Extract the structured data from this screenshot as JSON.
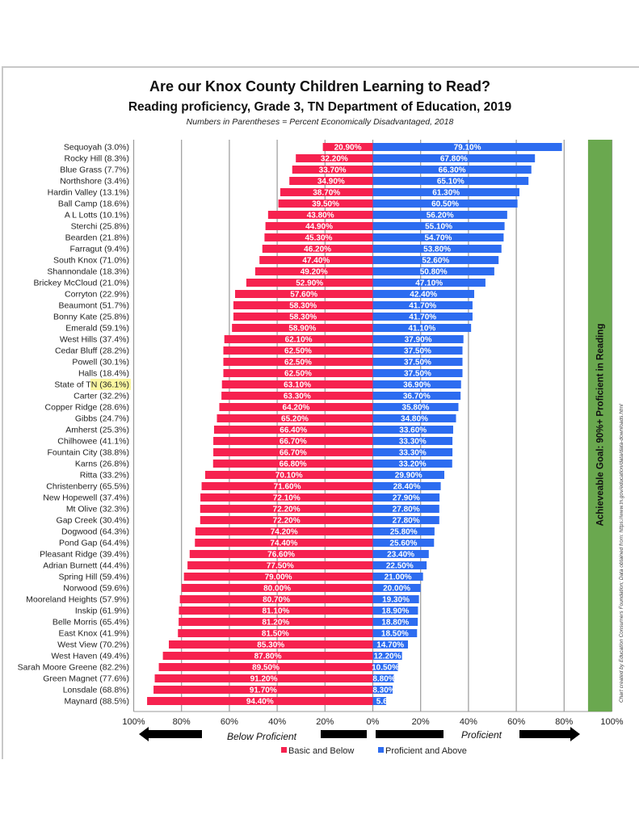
{
  "chart_data": {
    "type": "bar",
    "orientation": "horizontal-diverging",
    "title": "Are our Knox County Children Learning to Read?",
    "subtitle": "Reading proficiency, Grade 3, TN Department of Education, 2019",
    "note": "Numbers in Parentheses = Percent Economically Disadvantaged, 2018",
    "categories": [
      "Sequoyah (3.0%)",
      "Rocky Hill (8.3%)",
      "Blue Grass (7.7%)",
      "Northshore (3.4%)",
      "Hardin Valley (13.1%)",
      "Ball Camp (18.6%)",
      "A L Lotts (10.1%)",
      "Sterchi (25.8%)",
      "Bearden (21.8%)",
      "Farragut (9.4%)",
      "South Knox (71.0%)",
      "Shannondale (18.3%)",
      "Brickey McCloud (21.0%)",
      "Corryton (22.9%)",
      "Beaumont (51.7%)",
      "Bonny Kate (25.8%)",
      "Emerald (59.1%)",
      "West Hills (37.4%)",
      "Cedar Bluff (28.2%)",
      "Powell (30.1%)",
      "Halls (18.4%)",
      "State of TN (36.1%)",
      "Carter (32.2%)",
      "Copper Ridge (28.6%)",
      "Gibbs (24.7%)",
      "Amherst (25.3%)",
      "Chilhowee (41.1%)",
      "Fountain City (38.8%)",
      "Karns (26.8%)",
      "Ritta (33.2%)",
      "Christenberry (65.5%)",
      "New Hopewell (37.4%)",
      "Mt Olive (32.3%)",
      "Gap Creek (30.4%)",
      "Dogwood (64.3%)",
      "Pond Gap (64.4%)",
      "Pleasant Ridge (39.4%)",
      "Adrian Burnett (44.4%)",
      "Spring Hill (59.4%)",
      "Norwood (59.6%)",
      "Mooreland Heights (57.9%)",
      "Inskip (61.9%)",
      "Belle Morris (65.4%)",
      "East Knox (41.9%)",
      "West View (70.2%)",
      "West Haven (49.4%)",
      "Sarah Moore Greene (82.2%)",
      "Green Magnet (77.6%)",
      "Lonsdale (68.8%)",
      "Maynard (88.5%)"
    ],
    "highlighted_category": "State of TN (36.1%)",
    "highlight_color": "#fbf7a0",
    "series": [
      {
        "name": "Basic and Below",
        "color": "#f6224f",
        "direction": "left",
        "values": [
          20.9,
          32.2,
          33.7,
          34.9,
          38.7,
          39.5,
          43.8,
          44.9,
          45.3,
          46.2,
          47.4,
          49.2,
          52.9,
          57.6,
          58.3,
          58.3,
          58.9,
          62.1,
          62.5,
          62.5,
          62.5,
          63.1,
          63.3,
          64.2,
          65.2,
          66.4,
          66.7,
          66.7,
          66.8,
          70.1,
          71.6,
          72.1,
          72.2,
          72.2,
          74.2,
          74.4,
          76.6,
          77.5,
          79.0,
          80.0,
          80.7,
          81.1,
          81.2,
          81.5,
          85.3,
          87.8,
          89.5,
          91.2,
          91.7,
          94.4
        ],
        "labels": [
          "20.90%",
          "32.20%",
          "33.70%",
          "34.90%",
          "38.70%",
          "39.50%",
          "43.80%",
          "44.90%",
          "45.30%",
          "46.20%",
          "47.40%",
          "49.20%",
          "52.90%",
          "57.60%",
          "58.30%",
          "58.30%",
          "58.90%",
          "62.10%",
          "62.50%",
          "62.50%",
          "62.50%",
          "63.10%",
          "63.30%",
          "64.20%",
          "65.20%",
          "66.40%",
          "66.70%",
          "66.70%",
          "66.80%",
          "70.10%",
          "71.60%",
          "72.10%",
          "72.20%",
          "72.20%",
          "74.20%",
          "74.40%",
          "76.60%",
          "77.50%",
          "79.00%",
          "80.00%",
          "80.70%",
          "81.10%",
          "81.20%",
          "81.50%",
          "85.30%",
          "87.80%",
          "89.50%",
          "91.20%",
          "91.70%",
          "94.40%"
        ]
      },
      {
        "name": "Proficient and Above",
        "color": "#2d6cf0",
        "direction": "right",
        "values": [
          79.1,
          67.8,
          66.3,
          65.1,
          61.3,
          60.5,
          56.2,
          55.1,
          54.7,
          53.8,
          52.6,
          50.8,
          47.1,
          42.4,
          41.7,
          41.7,
          41.1,
          37.9,
          37.5,
          37.5,
          37.5,
          36.9,
          36.7,
          35.8,
          34.8,
          33.6,
          33.3,
          33.3,
          33.2,
          29.9,
          28.4,
          27.9,
          27.8,
          27.8,
          25.8,
          25.6,
          23.4,
          22.5,
          21.0,
          20.0,
          19.3,
          18.9,
          18.8,
          18.5,
          14.7,
          12.2,
          10.5,
          8.8,
          8.3,
          5.6
        ],
        "labels": [
          "79.10%",
          "67.80%",
          "66.30%",
          "65.10%",
          "61.30%",
          "60.50%",
          "56.20%",
          "55.10%",
          "54.70%",
          "53.80%",
          "52.60%",
          "50.80%",
          "47.10%",
          "42.40%",
          "41.70%",
          "41.70%",
          "41.10%",
          "37.90%",
          "37.50%",
          "37.50%",
          "37.50%",
          "36.90%",
          "36.70%",
          "35.80%",
          "34.80%",
          "33.60%",
          "33.30%",
          "33.30%",
          "33.20%",
          "29.90%",
          "28.40%",
          "27.90%",
          "27.80%",
          "27.80%",
          "25.80%",
          "25.60%",
          "23.40%",
          "22.50%",
          "21.00%",
          "20.00%",
          "19.30%",
          "18.90%",
          "18.80%",
          "18.50%",
          "14.70%",
          "12.20%",
          "10.50%",
          "8.80%",
          "8.30%",
          "5.60"
        ]
      }
    ],
    "x_ticks_left": [
      "100%",
      "80%",
      "60%",
      "40%",
      "20%",
      "0%"
    ],
    "x_ticks_right": [
      "20%",
      "40%",
      "60%",
      "80%",
      "100%"
    ],
    "xlim": [
      -100,
      100
    ],
    "grid": true,
    "direction_labels": {
      "left": "Below Proficient",
      "right": "Proficient"
    },
    "legend": {
      "position": "bottom-center",
      "items": [
        {
          "label": "Basic and Below",
          "color": "#f6224f"
        },
        {
          "label": "Proficient and Above",
          "color": "#2d6cf0"
        }
      ]
    },
    "goal_band": {
      "from": 90,
      "to": 100,
      "color": "#6aa84f",
      "label": "Achieveable Goal: 90%+ Proficient in Reading"
    },
    "credit": "Chart created by Education Consumers Foundation; Data obtained from: https://www.tn.gov/education/data/data-downloads.html"
  }
}
